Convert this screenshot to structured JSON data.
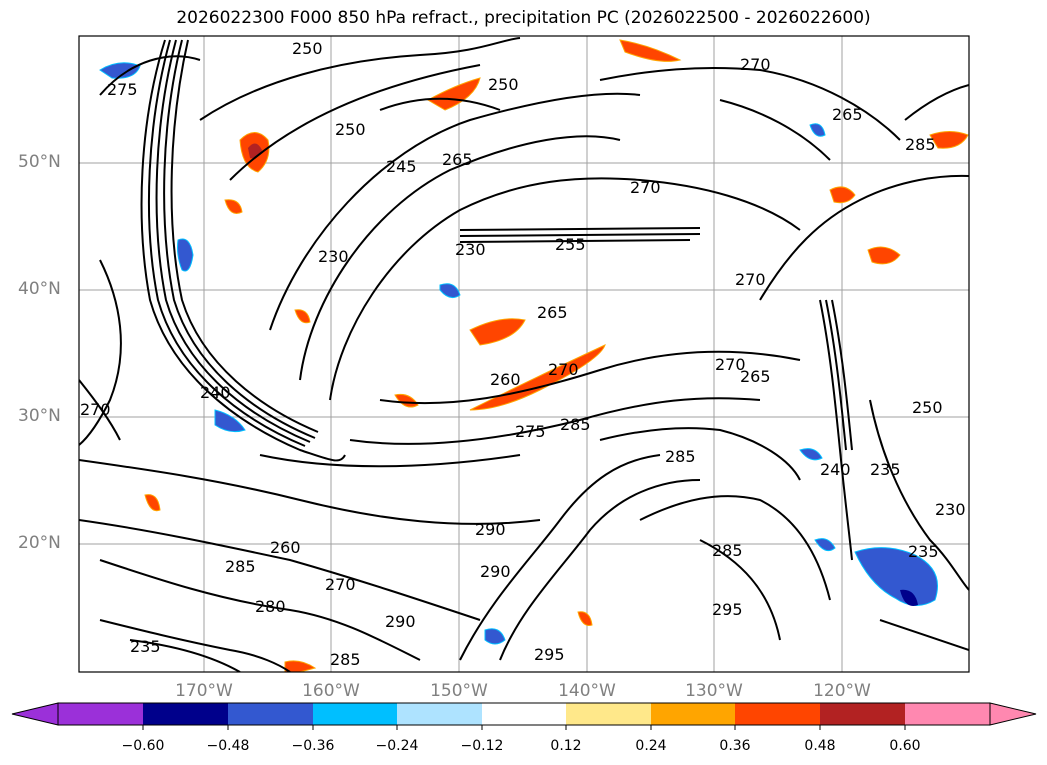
{
  "title": "2026022300 F000 850 hPa refract., precipitation PC (2026022500 - 2026022600)",
  "map": {
    "lat_labels": [
      "50°N",
      "40°N",
      "30°N",
      "20°N"
    ],
    "lon_labels": [
      "170°W",
      "160°W",
      "150°W",
      "140°W",
      "130°W",
      "120°W"
    ],
    "contour_labels": [
      "250",
      "275",
      "250",
      "270",
      "265",
      "250",
      "245",
      "265",
      "270",
      "230",
      "230",
      "255",
      "265",
      "260",
      "270",
      "270",
      "285",
      "270",
      "285",
      "265",
      "270",
      "275",
      "285",
      "250",
      "240",
      "285",
      "260",
      "290",
      "270",
      "285",
      "290",
      "290",
      "295",
      "285",
      "295",
      "235",
      "230",
      "235",
      "240",
      "235",
      "280"
    ]
  },
  "colorbar": {
    "ticks": [
      "−0.60",
      "−0.48",
      "−0.36",
      "−0.24",
      "−0.12",
      "0.12",
      "0.24",
      "0.36",
      "0.48",
      "0.60"
    ],
    "colors": [
      "#9b30d9",
      "#00008b",
      "#3358d0",
      "#00bfff",
      "#aee3ff",
      "#ffffff",
      "#ffe88a",
      "#ffa500",
      "#ff4500",
      "#b22222",
      "#ff88b0"
    ]
  }
}
